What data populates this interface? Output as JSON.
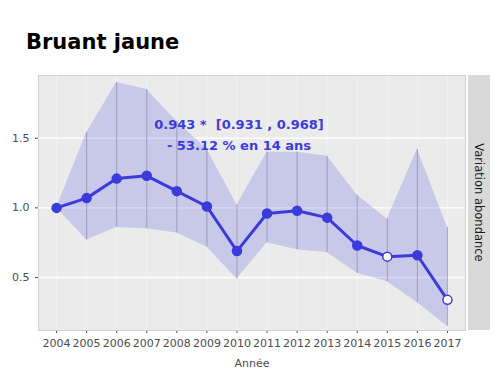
{
  "chart_data": {
    "type": "line",
    "title": "Bruant jaune",
    "annotations": [
      "0.943 *  [0.931 , 0.968]",
      "- 53.12 % en 14 ans"
    ],
    "x_label": "Année",
    "y_label": "Variation abondance",
    "x": [
      2004,
      2005,
      2006,
      2007,
      2008,
      2009,
      2010,
      2011,
      2012,
      2013,
      2014,
      2015,
      2016,
      2017
    ],
    "values": [
      1.0,
      1.07,
      1.21,
      1.23,
      1.12,
      1.01,
      0.69,
      0.96,
      0.98,
      0.93,
      0.73,
      0.65,
      0.66,
      0.34
    ],
    "lower": [
      1.0,
      0.77,
      0.86,
      0.85,
      0.82,
      0.72,
      0.49,
      0.75,
      0.7,
      0.68,
      0.53,
      0.47,
      0.32,
      0.15
    ],
    "upper": [
      1.0,
      1.54,
      1.9,
      1.85,
      1.62,
      1.42,
      1.02,
      1.4,
      1.4,
      1.37,
      1.09,
      0.92,
      1.42,
      0.86
    ],
    "open_markers": [
      false,
      false,
      false,
      false,
      false,
      false,
      false,
      false,
      false,
      false,
      false,
      true,
      false,
      true
    ],
    "color": "#3b3bdc",
    "marker": "circle",
    "xlim": [
      2003.4,
      2017.6
    ],
    "ylim": [
      0.12,
      1.95
    ],
    "xticks": [
      2004,
      2005,
      2006,
      2007,
      2008,
      2009,
      2010,
      2011,
      2012,
      2013,
      2014,
      2015,
      2016,
      2017
    ],
    "yticks": [
      0.5,
      {
        "value": 1,
        "label": "1.0"
      },
      1.5
    ],
    "grid": true
  }
}
